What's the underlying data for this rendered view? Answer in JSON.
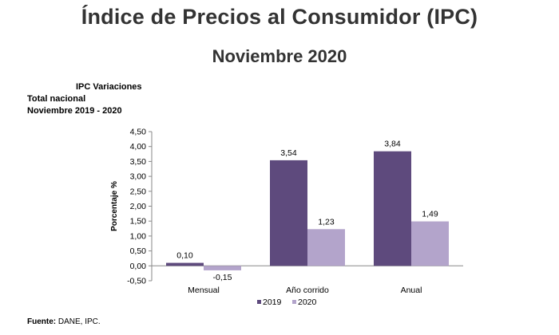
{
  "header": {
    "title": "Índice de Precios al Consumidor (IPC)",
    "subtitle": "Noviembre 2020"
  },
  "caption": {
    "line1": "IPC Variaciones",
    "line2": "Total nacional",
    "line3": "Noviembre 2019 - 2020"
  },
  "source": {
    "label": "Fuente:",
    "text": " DANE, IPC."
  },
  "chart_data": {
    "type": "bar",
    "categories": [
      "Mensual",
      "Año corrido",
      "Anual"
    ],
    "series": [
      {
        "name": "2019",
        "values": [
          0.1,
          3.54,
          3.84
        ],
        "labels": [
          "0,10",
          "3,54",
          "3,84"
        ],
        "color": "#5e4a7d"
      },
      {
        "name": "2020",
        "values": [
          -0.15,
          1.23,
          1.49
        ],
        "labels": [
          "-0,15",
          "1,23",
          "1,49"
        ],
        "color": "#b3a4cb"
      }
    ],
    "ylabel": "Porcentaje %",
    "ylim": [
      -0.5,
      4.5
    ],
    "yticks": [
      -0.5,
      0,
      0.5,
      1,
      1.5,
      2,
      2.5,
      3,
      3.5,
      4,
      4.5
    ],
    "ytick_labels": [
      "-0,50",
      "0,00",
      "0,50",
      "1,00",
      "1,50",
      "2,00",
      "2,50",
      "3,00",
      "3,50",
      "4,00",
      "4,50"
    ],
    "legend_position": "bottom",
    "grid": false
  }
}
